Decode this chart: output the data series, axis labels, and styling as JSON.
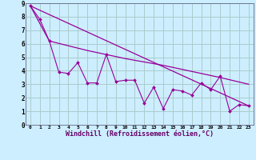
{
  "background_color": "#cceeff",
  "grid_color": "#aacccc",
  "line_color": "#990099",
  "xlim": [
    -0.5,
    23.5
  ],
  "ylim": [
    0,
    9
  ],
  "xlabel": "Windchill (Refroidissement éolien,°C)",
  "xlabel_fontsize": 6.0,
  "xtick_vals": [
    0,
    1,
    2,
    3,
    4,
    5,
    6,
    7,
    8,
    9,
    10,
    11,
    12,
    13,
    14,
    15,
    16,
    17,
    18,
    19,
    20,
    21,
    22,
    23
  ],
  "xtick_labels": [
    "0",
    "1",
    "2",
    "3",
    "4",
    "5",
    "6",
    "7",
    "8",
    "9",
    "10",
    "11",
    "12",
    "13",
    "14",
    "15",
    "16",
    "17",
    "18",
    "19",
    "20",
    "21",
    "22",
    "23"
  ],
  "ytick_vals": [
    0,
    1,
    2,
    3,
    4,
    5,
    6,
    7,
    8,
    9
  ],
  "ytick_labels": [
    "0",
    "1",
    "2",
    "3",
    "4",
    "5",
    "6",
    "7",
    "8",
    "9"
  ],
  "series_zigzag_x": [
    0,
    1,
    2,
    3,
    4,
    5,
    6,
    7,
    8,
    9,
    10,
    11,
    12,
    13,
    14,
    15,
    16,
    17,
    18,
    19,
    20,
    21,
    22,
    23
  ],
  "series_zigzag_y": [
    8.8,
    7.8,
    6.2,
    3.9,
    3.8,
    4.6,
    3.1,
    3.1,
    5.2,
    3.2,
    3.3,
    3.3,
    1.6,
    2.8,
    1.2,
    2.6,
    2.5,
    2.2,
    3.1,
    2.6,
    3.6,
    1.0,
    1.5,
    1.4
  ],
  "series_trend_x": [
    0,
    23
  ],
  "series_trend_y": [
    8.8,
    1.4
  ],
  "series_upper_x": [
    0,
    2,
    6,
    7,
    10,
    14,
    20,
    23
  ],
  "series_upper_y": [
    8.8,
    6.2,
    5.5,
    5.35,
    4.9,
    4.4,
    3.5,
    3.0
  ]
}
